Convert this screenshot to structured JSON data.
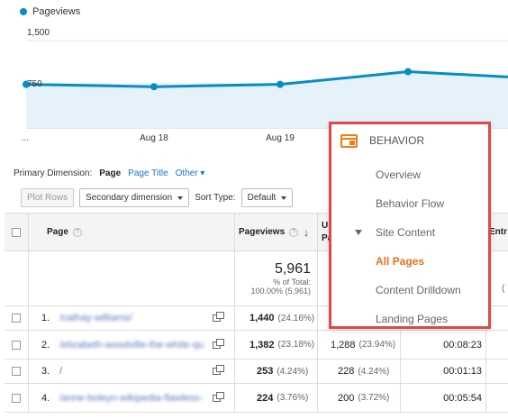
{
  "legend": {
    "label": "Pageviews",
    "color": "#058dc7"
  },
  "chart_data": {
    "type": "line",
    "series": [
      {
        "name": "Pageviews",
        "values": [
          740,
          700,
          740,
          960,
          870
        ]
      }
    ],
    "y_ticks": [
      "1,500",
      "750"
    ],
    "x_ticks": [
      "...",
      "Aug 18",
      "Aug 19"
    ],
    "ylim": [
      0,
      1500
    ],
    "colors": {
      "line": "#058dc7",
      "fill": "#e5f2fa"
    }
  },
  "dimension": {
    "label": "Primary Dimension:",
    "active": "Page",
    "option_1": "Page Title",
    "option_2": "Other"
  },
  "toolbar": {
    "plot_rows": "Plot Rows",
    "secondary_dimension": "Secondary dimension",
    "sort_type_label": "Sort Type:",
    "sort_type_value": "Default"
  },
  "table": {
    "headers": {
      "page": "Page",
      "pageviews": "Pageviews",
      "unique_partial_1": "Ur",
      "unique_partial_2": "Pa",
      "entrances_partial": "Entr"
    },
    "totals": {
      "pageviews": "5,961",
      "pct_label": "% of Total:",
      "pct_value": "100.00% (5,961)",
      "partial": "("
    },
    "rows": [
      {
        "num": "1.",
        "page": "/cathay-williams/",
        "pageviews": "1,440",
        "pv_pct": "(24.16%)",
        "unique": "",
        "u_pct": "",
        "time": ""
      },
      {
        "num": "2.",
        "page": "/elizabeth-woodville-the-white-queen/",
        "pageviews": "1,382",
        "pv_pct": "(23.18%)",
        "unique": "1,288",
        "u_pct": "(23.94%)",
        "time": "00:08:23"
      },
      {
        "num": "3.",
        "page": "/",
        "pageviews": "253",
        "pv_pct": "(4.24%)",
        "unique": "228",
        "u_pct": "(4.24%)",
        "time": "00:01:13"
      },
      {
        "num": "4.",
        "page": "/anne-boleyn-wikipedia-flawless-sh/",
        "pageviews": "224",
        "pv_pct": "(3.76%)",
        "unique": "200",
        "u_pct": "(3.72%)",
        "time": "00:05:54"
      }
    ]
  },
  "menu": {
    "title": "BEHAVIOR",
    "items": [
      "Overview",
      "Behavior Flow",
      "Site Content",
      "All Pages",
      "Content Drilldown",
      "Landing Pages"
    ]
  }
}
